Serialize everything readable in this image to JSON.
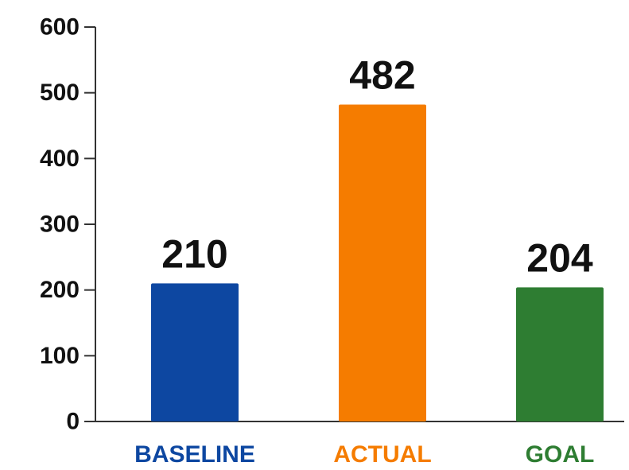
{
  "chart_data": {
    "type": "bar",
    "categories": [
      "BASELINE",
      "ACTUAL",
      "GOAL"
    ],
    "values": [
      210,
      482,
      204
    ],
    "data_labels": [
      "210",
      "482",
      "204"
    ],
    "colors": [
      "#0d47a1",
      "#f57c00",
      "#2e7d32"
    ],
    "ylim": [
      0,
      600
    ],
    "yticks": [
      "0",
      "100",
      "200",
      "300",
      "400",
      "500",
      "600"
    ],
    "grid": false,
    "legend": "none"
  }
}
